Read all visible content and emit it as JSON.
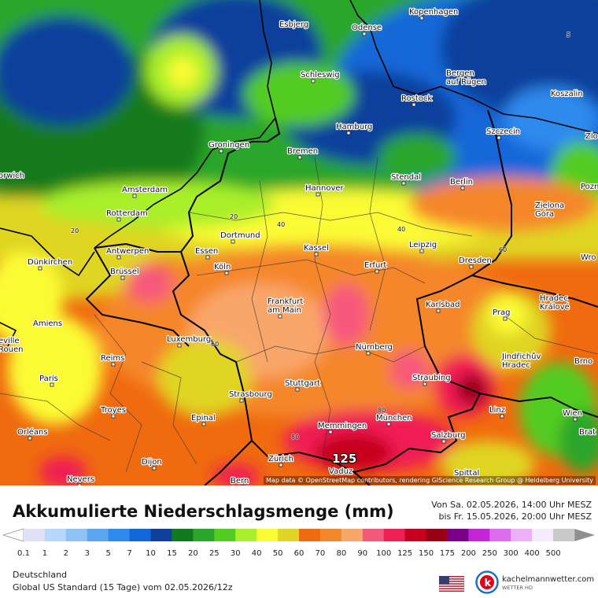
{
  "map": {
    "cities": [
      {
        "name": "Esbjerg"
      },
      {
        "name": "Odense"
      },
      {
        "name": "Kopenhagen"
      },
      {
        "name": "Schleswig"
      },
      {
        "name": "Bergen\nauf Rügen"
      },
      {
        "name": "Rostock"
      },
      {
        "name": "Koszalin"
      },
      {
        "name": "Hamburg"
      },
      {
        "name": "Szczecin"
      },
      {
        "name": "Groningen"
      },
      {
        "name": "Bremen"
      },
      {
        "name": "orwich"
      },
      {
        "name": "Amsterdam"
      },
      {
        "name": "Stendal"
      },
      {
        "name": "Berlin"
      },
      {
        "name": "Hannover"
      },
      {
        "name": "Pozn"
      },
      {
        "name": "Rotterdam"
      },
      {
        "name": "Zielona\nGóra"
      },
      {
        "name": "Dortmund"
      },
      {
        "name": "Antwerpen"
      },
      {
        "name": "Essen"
      },
      {
        "name": "Kassel"
      },
      {
        "name": "Leipzig"
      },
      {
        "name": "Dünkirchen"
      },
      {
        "name": "Köln"
      },
      {
        "name": "Erfurt"
      },
      {
        "name": "Dresden"
      },
      {
        "name": "Wro"
      },
      {
        "name": "Brüssel"
      },
      {
        "name": "Frankfurt\nam Main"
      },
      {
        "name": "Karlsbad"
      },
      {
        "name": "Hradec\nKrálové"
      },
      {
        "name": "Amiens"
      },
      {
        "name": "Prag"
      },
      {
        "name": "Luxemburg"
      },
      {
        "name": "Nürnberg"
      },
      {
        "name": "eville\nRouen"
      },
      {
        "name": "Reims"
      },
      {
        "name": "Jindřichův\nHradec"
      },
      {
        "name": "Brno"
      },
      {
        "name": "Paris"
      },
      {
        "name": "Straubing"
      },
      {
        "name": "Stuttgart"
      },
      {
        "name": "Strasbourg"
      },
      {
        "name": "Troyes"
      },
      {
        "name": "Epinal"
      },
      {
        "name": "Linz"
      },
      {
        "name": "Wien"
      },
      {
        "name": "München"
      },
      {
        "name": "Orléans"
      },
      {
        "name": "Memmingen"
      },
      {
        "name": "Brat"
      },
      {
        "name": "Salzburg"
      },
      {
        "name": "Dijon"
      },
      {
        "name": "Zürich"
      },
      {
        "name": "Nevers"
      },
      {
        "name": "Bern"
      },
      {
        "name": "Vaduz"
      },
      {
        "name": "Spittal"
      },
      {
        "name": "Zlo"
      }
    ],
    "contour_labels": [
      "5",
      "20",
      "20",
      "40",
      "40",
      "60",
      "60",
      "80",
      "80",
      "125"
    ],
    "attribution": "Map data © OpenStreetMap contributors, rendering GIScience Research Group @ Heidelberg University"
  },
  "header": {
    "title": "Akkumulierte Niederschlagsmenge (mm)",
    "period_from": "Von Sa. 02.05.2026, 14:00 Uhr MESZ",
    "period_to": "bis Fr. 15.05.2026, 20:00 Uhr MESZ"
  },
  "legend": {
    "values": [
      "0.1",
      "1",
      "2",
      "3",
      "5",
      "7",
      "10",
      "15",
      "20",
      "25",
      "30",
      "40",
      "50",
      "60",
      "70",
      "80",
      "90",
      "100",
      "125",
      "150",
      "175",
      "200",
      "250",
      "300",
      "400",
      "500"
    ],
    "colors": [
      "#e1e1f5",
      "#b6d8fb",
      "#8fc3f8",
      "#5aa6f2",
      "#2f8aed",
      "#1268d9",
      "#0e3f9c",
      "#127a1e",
      "#2aa62a",
      "#53cc22",
      "#a9ef2c",
      "#fbfb34",
      "#e0d524",
      "#f06a0f",
      "#f5872b",
      "#f9a66a",
      "#f7597b",
      "#f01f55",
      "#c8001f",
      "#9b0016",
      "#7a0089",
      "#c425d6",
      "#dd6ef0",
      "#ecb0f6",
      "#f5ebfc",
      "#c9c9c9"
    ]
  },
  "footer": {
    "region": "Deutschland",
    "model": "Global US Standard (15 Tage)  vom  02.05.2026/12z",
    "brand_name": "kachelmannwetter.com",
    "brand_sub": "WETTER HD",
    "flag_icon": "us-flag-icon",
    "brand_icon": "kachelmann-logo-icon"
  }
}
